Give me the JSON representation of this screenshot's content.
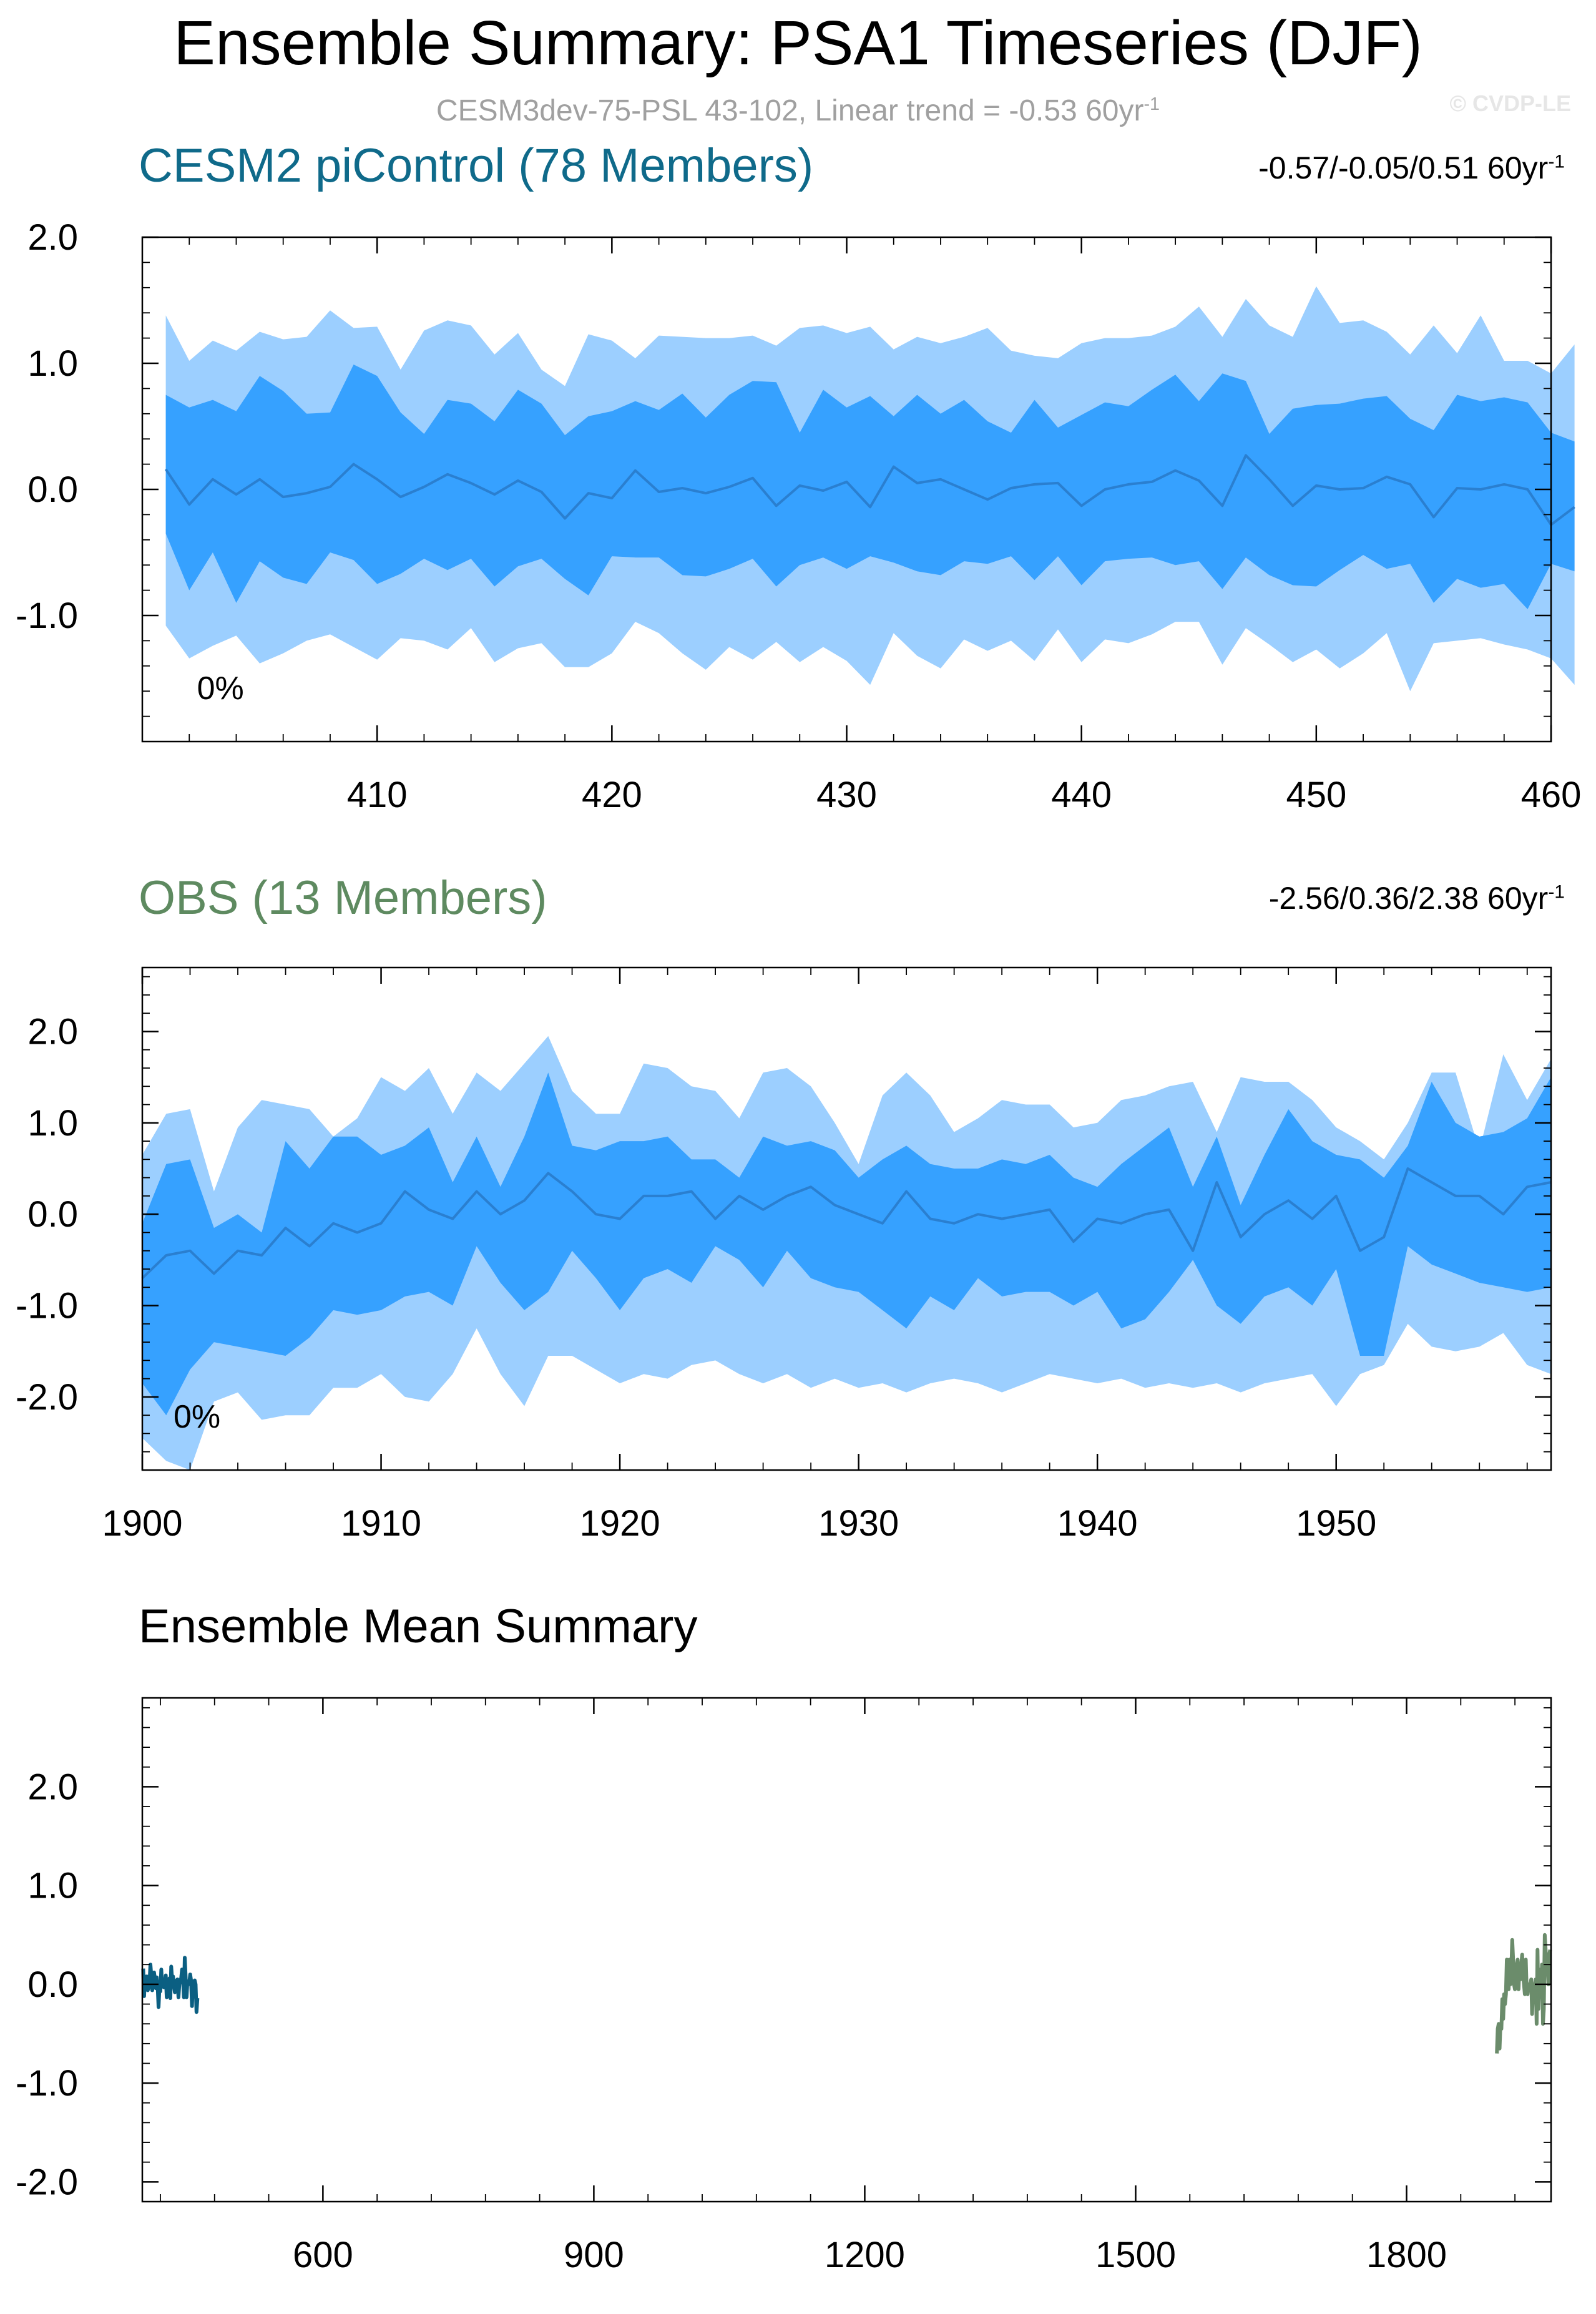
{
  "title": "Ensemble Summary: PSA1 Timeseries (DJF)",
  "subtitle": {
    "text": "CESM3dev-75-PSL 43-102, Linear trend = -0.53 60yr",
    "sup": "-1"
  },
  "watermark": "© CVDP-LE",
  "colors": {
    "outer_band": "#9ccfff",
    "inner_band": "#36a1ff",
    "mean_line": "#2a7fd0",
    "cesm_title": "#0f6a8a",
    "obs_title": "#5e8a60",
    "cesm_line": "#0b5f82",
    "obs_line": "#6b8c6b",
    "axis": "#000000",
    "subtitle": "#a0a0a0"
  },
  "chart_data": [
    {
      "type": "area",
      "title": "CESM2 piControl (78 Members)",
      "range_label": "-0.57/-0.05/0.51 60yr",
      "range_sup": "-1",
      "percent_label": "0%",
      "xlim": [
        400,
        460
      ],
      "ylim": [
        -2.0,
        2.0
      ],
      "x_start": 401,
      "xticks": [
        410,
        420,
        430,
        440,
        450,
        460
      ],
      "xtick_labels": [
        "410",
        "420",
        "430",
        "440",
        "450",
        "460"
      ],
      "yticks": [
        2.0,
        1.0,
        0.0,
        -1.0
      ],
      "ytick_labels": [
        "2.0",
        "1.0",
        "0.0",
        "-1.0"
      ],
      "p90": [
        1.38,
        1.02,
        1.18,
        1.1,
        1.25,
        1.19,
        1.21,
        1.42,
        1.28,
        1.29,
        0.95,
        1.26,
        1.34,
        1.3,
        1.07,
        1.24,
        0.95,
        0.82,
        1.23,
        1.18,
        1.04,
        1.22,
        1.21,
        1.2,
        1.2,
        1.22,
        1.14,
        1.28,
        1.3,
        1.24,
        1.29,
        1.11,
        1.21,
        1.16,
        1.21,
        1.28,
        1.1,
        1.06,
        1.04,
        1.16,
        1.2,
        1.2,
        1.22,
        1.29,
        1.45,
        1.21,
        1.51,
        1.3,
        1.21,
        1.61,
        1.32,
        1.34,
        1.25,
        1.07,
        1.3,
        1.08,
        1.38,
        1.02,
        1.02,
        0.92,
        1.15
      ],
      "p75": [
        0.75,
        0.65,
        0.71,
        0.62,
        0.9,
        0.78,
        0.6,
        0.61,
        0.99,
        0.9,
        0.61,
        0.44,
        0.71,
        0.68,
        0.54,
        0.79,
        0.68,
        0.43,
        0.58,
        0.62,
        0.7,
        0.63,
        0.76,
        0.57,
        0.75,
        0.86,
        0.85,
        0.45,
        0.79,
        0.65,
        0.74,
        0.58,
        0.75,
        0.6,
        0.71,
        0.54,
        0.45,
        0.71,
        0.49,
        0.59,
        0.69,
        0.66,
        0.79,
        0.91,
        0.7,
        0.92,
        0.86,
        0.44,
        0.64,
        0.67,
        0.68,
        0.72,
        0.74,
        0.56,
        0.47,
        0.75,
        0.7,
        0.73,
        0.69,
        0.45,
        0.38
      ],
      "mean": [
        0.16,
        -0.12,
        0.08,
        -0.04,
        0.08,
        -0.06,
        -0.03,
        0.02,
        0.2,
        0.08,
        -0.06,
        0.02,
        0.12,
        0.05,
        -0.04,
        0.07,
        -0.02,
        -0.23,
        -0.03,
        -0.07,
        0.15,
        -0.02,
        0.01,
        -0.03,
        0.02,
        0.09,
        -0.13,
        0.03,
        -0.01,
        0.06,
        -0.14,
        0.18,
        0.05,
        0.08,
        0.0,
        -0.08,
        0.01,
        0.04,
        0.05,
        -0.13,
        0.0,
        0.04,
        0.06,
        0.15,
        0.07,
        -0.13,
        0.27,
        0.08,
        -0.13,
        0.03,
        0.0,
        0.01,
        0.1,
        0.04,
        -0.22,
        0.01,
        0.0,
        0.04,
        0.0,
        -0.28,
        -0.14
      ],
      "p25": [
        -0.35,
        -0.8,
        -0.5,
        -0.9,
        -0.57,
        -0.7,
        -0.75,
        -0.5,
        -0.56,
        -0.75,
        -0.67,
        -0.55,
        -0.64,
        -0.55,
        -0.77,
        -0.61,
        -0.55,
        -0.71,
        -0.84,
        -0.53,
        -0.54,
        -0.54,
        -0.68,
        -0.69,
        -0.63,
        -0.55,
        -0.77,
        -0.6,
        -0.54,
        -0.63,
        -0.53,
        -0.58,
        -0.65,
        -0.68,
        -0.57,
        -0.59,
        -0.53,
        -0.72,
        -0.53,
        -0.76,
        -0.57,
        -0.55,
        -0.54,
        -0.6,
        -0.57,
        -0.79,
        -0.54,
        -0.68,
        -0.76,
        -0.77,
        -0.64,
        -0.52,
        -0.63,
        -0.59,
        -0.9,
        -0.71,
        -0.78,
        -0.75,
        -0.95,
        -0.59,
        -0.65
      ],
      "p10": [
        -1.08,
        -1.34,
        -1.24,
        -1.16,
        -1.38,
        -1.3,
        -1.2,
        -1.15,
        -1.25,
        -1.35,
        -1.18,
        -1.2,
        -1.27,
        -1.1,
        -1.37,
        -1.26,
        -1.22,
        -1.41,
        -1.41,
        -1.3,
        -1.05,
        -1.14,
        -1.3,
        -1.43,
        -1.25,
        -1.35,
        -1.21,
        -1.37,
        -1.25,
        -1.36,
        -1.55,
        -1.14,
        -1.32,
        -1.42,
        -1.19,
        -1.28,
        -1.2,
        -1.36,
        -1.11,
        -1.37,
        -1.19,
        -1.22,
        -1.15,
        -1.05,
        -1.05,
        -1.39,
        -1.1,
        -1.23,
        -1.37,
        -1.27,
        -1.42,
        -1.3,
        -1.14,
        -1.6,
        -1.22,
        -1.2,
        -1.18,
        -1.23,
        -1.27,
        -1.34,
        -1.55
      ],
      "series_color": "#0b5f82"
    },
    {
      "type": "area",
      "title": "OBS (13 Members)",
      "range_label": "-2.56/0.36/2.38 60yr",
      "range_sup": "-1",
      "percent_label": "0%",
      "xlim": [
        1900,
        1959
      ],
      "ylim": [
        -2.8,
        2.7
      ],
      "x_start": 1900,
      "xticks": [
        1900,
        1910,
        1920,
        1930,
        1940,
        1950
      ],
      "xtick_labels": [
        "1900",
        "1910",
        "1920",
        "1930",
        "1940",
        "1950"
      ],
      "yticks": [
        2.0,
        1.0,
        0.0,
        -1.0,
        -2.0
      ],
      "ytick_labels": [
        "2.0",
        "1.0",
        "0.0",
        "-1.0",
        "-2.0"
      ],
      "p90": [
        0.65,
        1.1,
        1.15,
        0.25,
        0.95,
        1.25,
        1.2,
        1.15,
        0.85,
        1.05,
        1.5,
        1.35,
        1.6,
        1.1,
        1.55,
        1.35,
        1.65,
        1.95,
        1.35,
        1.1,
        1.1,
        1.65,
        1.6,
        1.4,
        1.35,
        1.05,
        1.55,
        1.6,
        1.4,
        1.0,
        0.55,
        1.3,
        1.55,
        1.3,
        0.9,
        1.05,
        1.25,
        1.2,
        1.2,
        0.95,
        1.0,
        1.25,
        1.3,
        1.4,
        1.45,
        0.9,
        1.5,
        1.45,
        1.45,
        1.25,
        0.95,
        0.8,
        0.6,
        1.0,
        1.55,
        1.55,
        0.7,
        1.75,
        1.25,
        1.7
      ],
      "p75": [
        -0.1,
        0.55,
        0.6,
        -0.15,
        0.0,
        -0.2,
        0.8,
        0.5,
        0.85,
        0.85,
        0.65,
        0.75,
        0.95,
        0.35,
        0.85,
        0.3,
        0.85,
        1.55,
        0.75,
        0.7,
        0.8,
        0.8,
        0.85,
        0.6,
        0.6,
        0.4,
        0.85,
        0.75,
        0.8,
        0.7,
        0.4,
        0.6,
        0.75,
        0.55,
        0.5,
        0.5,
        0.6,
        0.55,
        0.65,
        0.4,
        0.3,
        0.55,
        0.75,
        0.95,
        0.3,
        0.85,
        0.1,
        0.65,
        1.15,
        0.8,
        0.65,
        0.6,
        0.4,
        0.75,
        1.45,
        1.0,
        0.85,
        0.9,
        1.05,
        1.5
      ],
      "mean": [
        -0.7,
        -0.45,
        -0.4,
        -0.65,
        -0.4,
        -0.45,
        -0.15,
        -0.35,
        -0.1,
        -0.2,
        -0.1,
        0.25,
        0.05,
        -0.05,
        0.25,
        0.0,
        0.15,
        0.45,
        0.25,
        0.0,
        -0.05,
        0.2,
        0.2,
        0.25,
        -0.05,
        0.2,
        0.05,
        0.2,
        0.3,
        0.1,
        0.0,
        -0.1,
        0.25,
        -0.05,
        -0.1,
        0.0,
        -0.05,
        0.0,
        0.05,
        -0.3,
        -0.05,
        -0.1,
        0.0,
        0.05,
        -0.4,
        0.35,
        -0.25,
        0.0,
        0.15,
        -0.05,
        0.2,
        -0.4,
        -0.25,
        0.5,
        0.35,
        0.2,
        0.2,
        0.0,
        0.3,
        0.35
      ],
      "p25": [
        -1.85,
        -2.2,
        -1.7,
        -1.4,
        -1.45,
        -1.5,
        -1.55,
        -1.35,
        -1.05,
        -1.1,
        -1.05,
        -0.9,
        -0.85,
        -1.0,
        -0.35,
        -0.75,
        -1.05,
        -0.85,
        -0.4,
        -0.7,
        -1.05,
        -0.7,
        -0.6,
        -0.75,
        -0.35,
        -0.5,
        -0.8,
        -0.4,
        -0.7,
        -0.8,
        -0.85,
        -1.05,
        -1.25,
        -0.9,
        -1.05,
        -0.7,
        -0.9,
        -0.85,
        -0.85,
        -1.0,
        -0.85,
        -1.25,
        -1.15,
        -0.85,
        -0.5,
        -1.0,
        -1.2,
        -0.9,
        -0.8,
        -1.0,
        -0.6,
        -1.55,
        -1.55,
        -0.35,
        -0.55,
        -0.65,
        -0.75,
        -0.8,
        -0.85,
        -0.8
      ],
      "p10": [
        -2.45,
        -2.7,
        -2.8,
        -2.05,
        -1.95,
        -2.25,
        -2.2,
        -2.2,
        -1.9,
        -1.9,
        -1.75,
        -2.0,
        -2.05,
        -1.75,
        -1.25,
        -1.75,
        -2.1,
        -1.55,
        -1.55,
        -1.7,
        -1.85,
        -1.75,
        -1.8,
        -1.65,
        -1.6,
        -1.75,
        -1.85,
        -1.75,
        -1.9,
        -1.8,
        -1.9,
        -1.85,
        -1.95,
        -1.85,
        -1.8,
        -1.85,
        -1.95,
        -1.85,
        -1.75,
        -1.8,
        -1.85,
        -1.8,
        -1.9,
        -1.85,
        -1.9,
        -1.85,
        -1.95,
        -1.85,
        -1.8,
        -1.75,
        -2.1,
        -1.75,
        -1.65,
        -1.2,
        -1.45,
        -1.5,
        -1.45,
        -1.3,
        -1.65,
        -1.75
      ],
      "series_color": "#6b8c6b"
    },
    {
      "type": "line",
      "title": "Ensemble Mean Summary",
      "xlim": [
        400,
        1960
      ],
      "ylim": [
        -2.2,
        2.9
      ],
      "xticks": [
        600,
        900,
        1200,
        1500,
        1800
      ],
      "xtick_labels": [
        "600",
        "900",
        "1200",
        "1500",
        "1800"
      ],
      "yticks": [
        2.0,
        1.0,
        0.0,
        -1.0,
        -2.0
      ],
      "ytick_labels": [
        "2.0",
        "1.0",
        "0.0",
        "-1.0",
        "-2.0"
      ],
      "series": [
        {
          "name": "CESM2 piControl",
          "source": 0,
          "color": "#0b5f82"
        },
        {
          "name": "OBS",
          "source": 1,
          "color": "#6b8c6b"
        }
      ]
    }
  ]
}
